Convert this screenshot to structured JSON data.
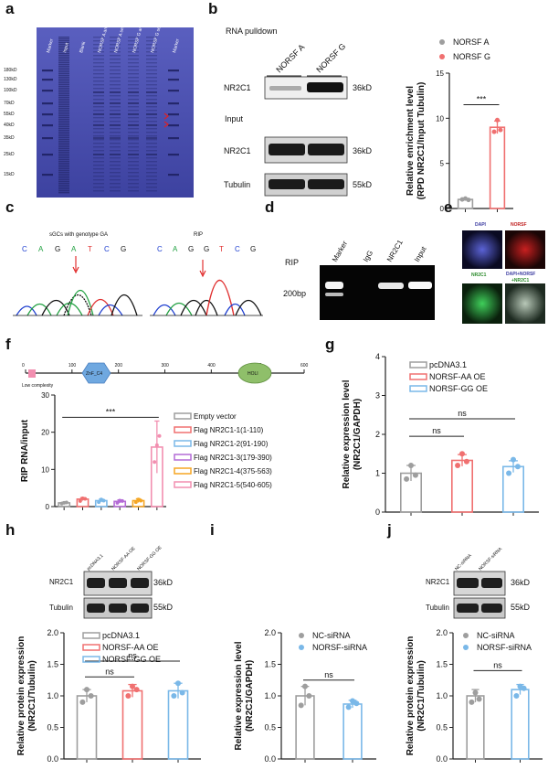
{
  "panel_labels": [
    "a",
    "b",
    "c",
    "d",
    "e",
    "f",
    "g",
    "h",
    "i",
    "j"
  ],
  "gel_a": {
    "lanes": [
      "Marker",
      "Input",
      "Blank",
      "NORSF A antisense",
      "NORSF A sense",
      "NORSF G antisense",
      "NORSF G sense",
      "Marker"
    ],
    "markers": [
      "180kD",
      "130kD",
      "100kD",
      "70kD",
      "55kD",
      "40kD",
      "35kD",
      "25kD",
      "15kD"
    ]
  },
  "blot_b": {
    "title": "RNA pulldown",
    "lanes": [
      "NORSF A",
      "NORSF G"
    ],
    "input_label": "Input",
    "rows": [
      {
        "label": "NR2C1",
        "size": "36kD"
      },
      {
        "label": "NR2C1",
        "size": "36kD"
      },
      {
        "label": "Tubulin",
        "size": "55kD"
      }
    ]
  },
  "chromatograms": {
    "left_title": "sGCs with genotype GA",
    "right_title": "RIP",
    "left_bases": [
      "C",
      "A",
      "G",
      "A",
      "T",
      "C",
      "G"
    ],
    "right_bases": [
      "C",
      "A",
      "G",
      "G",
      "T",
      "C",
      "G"
    ]
  },
  "gel_d": {
    "row_label": "RIP",
    "lanes": [
      "Marker",
      "IgG",
      "NR2C1",
      "Input"
    ],
    "size": "200bp"
  },
  "if_e": {
    "labels": [
      "DAPI",
      "NORSF",
      "NR2C1",
      "DAPI+NORSF",
      "+NR2C1"
    ]
  },
  "domain_f": {
    "ticks": [
      "0",
      "100",
      "200",
      "300",
      "400",
      "500",
      "600"
    ],
    "domains": [
      "ZnF_C4",
      "HOLI"
    ],
    "low_complexity": "Low complexity"
  },
  "blot_h": {
    "lanes": [
      "pcDNA3.1",
      "NORSF-AA OE",
      "NORSF-GG OE"
    ],
    "rows": [
      {
        "label": "NR2C1",
        "size": "36kD"
      },
      {
        "label": "Tubulin",
        "size": "55kD"
      }
    ]
  },
  "blot_j": {
    "lanes": [
      "NC-siRNA",
      "NORSF-siRNA"
    ],
    "rows": [
      {
        "label": "NR2C1",
        "size": "36kD"
      },
      {
        "label": "Tubulin",
        "size": "55kD"
      }
    ]
  },
  "colors": {
    "grey": "#9e9e9e",
    "red": "#f07070",
    "blue": "#7ab8e8",
    "purple": "#b46bd6",
    "orange": "#f5a623",
    "pink": "#f28fb0",
    "gel_blue": "#4a4fb0"
  },
  "chart_data": [
    {
      "panel": "b",
      "type": "bar",
      "categories": [
        "NORSF A",
        "NORSF G"
      ],
      "values": [
        1.0,
        9.0
      ],
      "points": [
        [
          1.0,
          1.1,
          0.95
        ],
        [
          8.5,
          9.8,
          8.7
        ]
      ],
      "errors": [
        0.1,
        0.7
      ],
      "ylabel": "Relative enrichment level (RPD NR2C1/Input Tubulin)",
      "ylim": [
        0,
        15
      ],
      "yticks": [
        "0",
        "5",
        "10",
        "15"
      ],
      "legend": [
        "NORSF A",
        "NORSF G"
      ],
      "significance": "***"
    },
    {
      "panel": "f",
      "type": "bar",
      "categories": [
        "Empty vector",
        "Flag NR2C1-1(1-110)",
        "Flag NR2C1-2(91-190)",
        "Flag NR2C1-3(179-390)",
        "Flag NR2C1-4(375-563)",
        "Flag NR2C1-5(540-605)"
      ],
      "values": [
        1.0,
        2.0,
        1.6,
        1.4,
        1.6,
        16.0
      ],
      "points": [
        [
          0.8,
          1.0,
          1.1
        ],
        [
          1.5,
          2.2,
          2.1
        ],
        [
          1.2,
          1.9,
          1.6
        ],
        [
          1.0,
          1.6,
          1.5
        ],
        [
          1.2,
          1.9,
          1.6
        ],
        [
          12.0,
          16.5,
          19.0
        ]
      ],
      "errors": [
        0.2,
        0.4,
        0.4,
        0.4,
        0.5,
        7.0
      ],
      "ylabel": "RIP RNA/input",
      "ylim": [
        0,
        30
      ],
      "yticks": [
        "0",
        "10",
        "20",
        "30"
      ],
      "significance": "***"
    },
    {
      "panel": "g",
      "type": "bar",
      "categories": [
        "pcDNA3.1",
        "NORSF-AA OE",
        "NORSF-GG OE"
      ],
      "values": [
        1.0,
        1.33,
        1.17
      ],
      "points": [
        [
          0.85,
          1.2,
          0.95
        ],
        [
          1.2,
          1.5,
          1.3
        ],
        [
          1.0,
          1.35,
          1.17
        ]
      ],
      "errors": [
        0.2,
        0.15,
        0.15
      ],
      "ylabel": "Relative expression level (NR2C1/GAPDH)",
      "ylim": [
        0,
        4
      ],
      "yticks": [
        "0",
        "1",
        "2",
        "3",
        "4"
      ],
      "legend": [
        "pcDNA3.1",
        "NORSF-AA OE",
        "NORSF-GG OE"
      ],
      "significance": [
        "ns",
        "ns"
      ]
    },
    {
      "panel": "h",
      "type": "bar",
      "categories": [
        "pcDNA3.1",
        "NORSF-AA OE",
        "NORSF-GG OE"
      ],
      "values": [
        1.0,
        1.08,
        1.08
      ],
      "points": [
        [
          0.9,
          1.1,
          1.0
        ],
        [
          1.0,
          1.15,
          1.1
        ],
        [
          1.0,
          1.2,
          1.05
        ]
      ],
      "errors": [
        0.1,
        0.1,
        0.12
      ],
      "ylabel": "Relative protein expression (NR2C1/Tubulin)",
      "ylim": [
        0,
        2.0
      ],
      "yticks": [
        "0.0",
        "0.5",
        "1.0",
        "1.5",
        "2.0"
      ],
      "legend": [
        "pcDNA3.1",
        "NORSF-AA OE",
        "NORSF-GG OE"
      ],
      "significance": [
        "ns",
        "ns"
      ]
    },
    {
      "panel": "i",
      "type": "bar",
      "categories": [
        "NC-siRNA",
        "NORSF-siRNA"
      ],
      "values": [
        1.0,
        0.87
      ],
      "points": [
        [
          0.85,
          1.15,
          1.0
        ],
        [
          0.82,
          0.92,
          0.88
        ]
      ],
      "errors": [
        0.15,
        0.06
      ],
      "ylabel": "Relative expression level (NR2C1/GAPDH)",
      "ylim": [
        0,
        2.0
      ],
      "yticks": [
        "0.0",
        "0.5",
        "1.0",
        "1.5",
        "2.0"
      ],
      "legend": [
        "NC-siRNA",
        "NORSF-siRNA"
      ],
      "significance": [
        "ns"
      ]
    },
    {
      "panel": "j",
      "type": "bar",
      "categories": [
        "NC-siRNA",
        "NORSF-siRNA"
      ],
      "values": [
        1.0,
        1.1
      ],
      "points": [
        [
          0.9,
          1.05,
          0.95
        ],
        [
          1.0,
          1.15,
          1.12
        ]
      ],
      "errors": [
        0.1,
        0.08
      ],
      "ylabel": "Relative protein expression (NR2C1/Tubulin)",
      "ylim": [
        0,
        2.0
      ],
      "yticks": [
        "0.0",
        "0.5",
        "1.0",
        "1.5",
        "2.0"
      ],
      "legend": [
        "NC-siRNA",
        "NORSF-siRNA"
      ],
      "significance": [
        "ns"
      ]
    }
  ]
}
